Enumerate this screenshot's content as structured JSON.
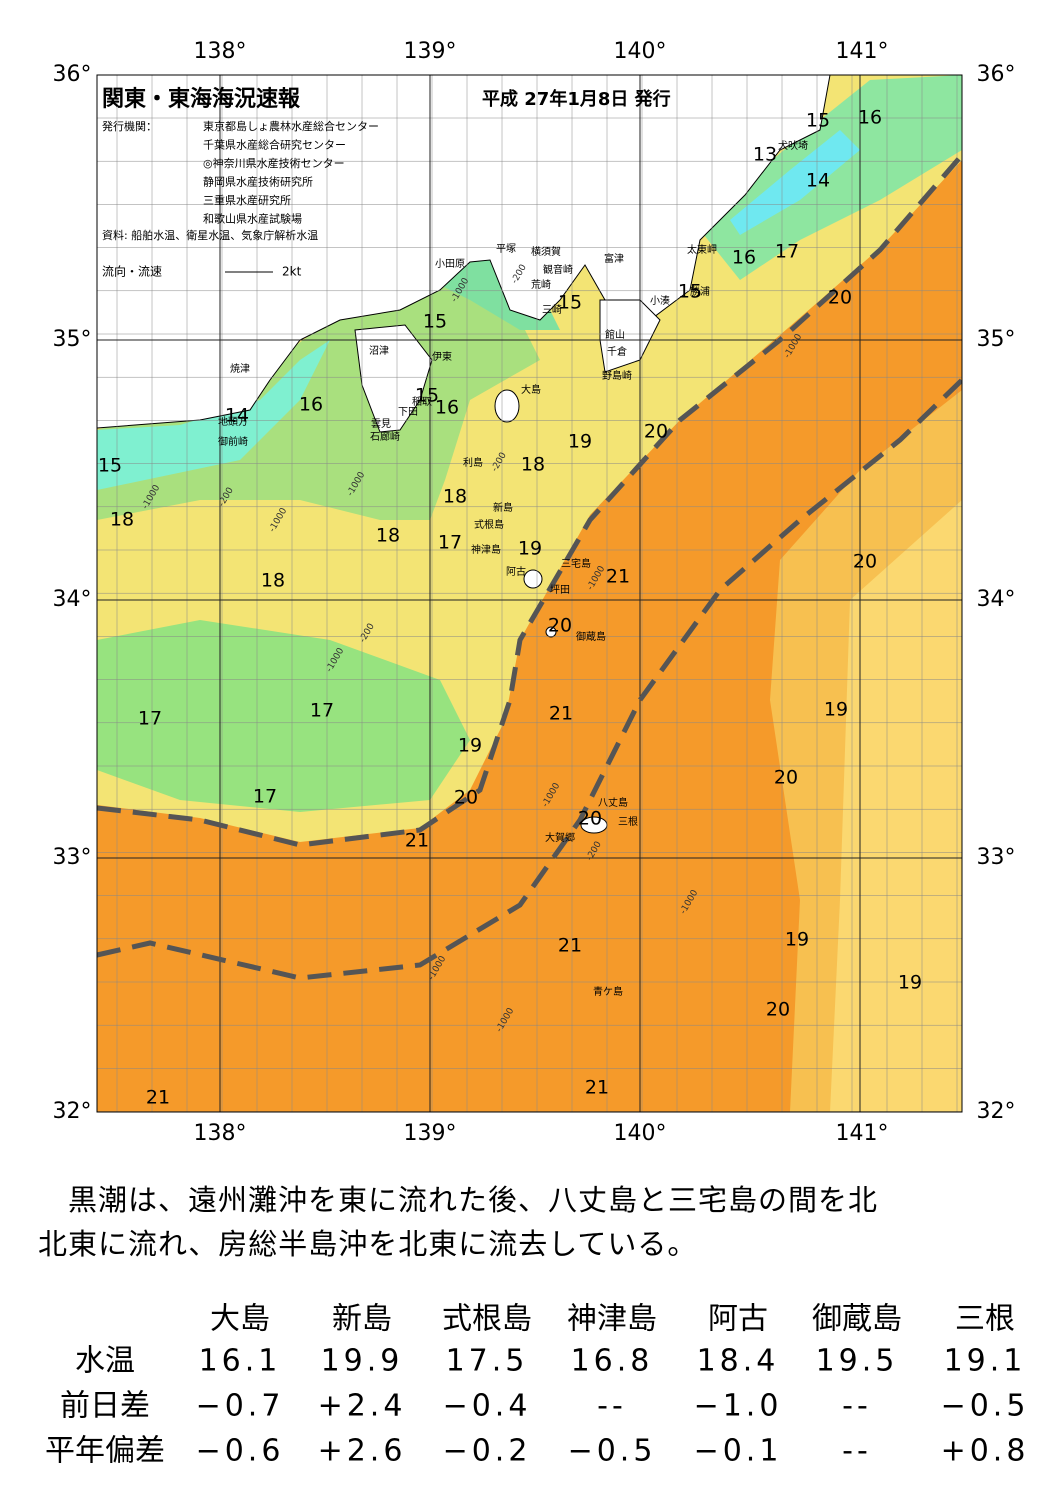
{
  "map": {
    "title": "関東・東海海況速報",
    "issue_date": "平成 27年1月8日 発行",
    "issuer_label": "発行機関：",
    "issuers": [
      "東京都島しょ農林水産総合センター",
      "千葉県水産総合研究センター",
      "◎神奈川県水産技術センター",
      "静岡県水産技術研究所",
      "三重県水産研究所",
      "和歌山県水産試験場"
    ],
    "source": "資料: 船舶水温、衛星水温、気象庁解析水温",
    "legend": "流向・流速",
    "legend_scale": "2kt",
    "lon_labels": [
      "138°",
      "139°",
      "140°",
      "141°"
    ],
    "lat_labels": [
      "36°",
      "35°",
      "34°",
      "33°",
      "32°"
    ],
    "temperature_labels": [
      "16",
      "15",
      "13",
      "14",
      "16",
      "17",
      "15",
      "20",
      "15",
      "15",
      "16",
      "14",
      "15",
      "16",
      "15",
      "18",
      "19",
      "20",
      "18",
      "18",
      "18",
      "17",
      "19",
      "18",
      "21",
      "20",
      "20",
      "17",
      "17",
      "21",
      "19",
      "19",
      "20",
      "20",
      "17",
      "20",
      "21",
      "19",
      "21",
      "19",
      "20",
      "21",
      "21"
    ],
    "place_names": [
      "犬吠埼",
      "太東岬",
      "富津",
      "平塚",
      "横須賀",
      "観音崎",
      "荒崎",
      "小田原",
      "勝浦",
      "小湊",
      "三崎",
      "館山",
      "千倉",
      "野島崎",
      "沼津",
      "伊東",
      "焼津",
      "大島",
      "稲取",
      "下田",
      "雲見",
      "石廊崎",
      "地頭方",
      "御前崎",
      "利島",
      "新島",
      "式根島",
      "神津島",
      "三宅島",
      "阿古",
      "坪田",
      "御蔵島",
      "八丈島",
      "三根",
      "大賀郷",
      "青ケ島"
    ],
    "depth_labels": [
      "-200",
      "-1000",
      "-1000",
      "-1000",
      "-1000",
      "-200",
      "-1000",
      "-200",
      "-1000",
      "-200",
      "-1000",
      "-1000",
      "-200",
      "-1000",
      "-1000",
      "-1000"
    ]
  },
  "summary": [
    "黒潮は、遠州灘沖を東に流れた後、八丈島と三宅島の間を北",
    "北東に流れ、房総半島沖を北東に流去している。"
  ],
  "table": {
    "columns": [
      "大島",
      "新島",
      "式根島",
      "神津島",
      "阿古",
      "御蔵島",
      "三根"
    ],
    "rows": [
      {
        "label": "水温",
        "values": [
          "16.1",
          "19.9",
          "17.5",
          "16.8",
          "18.4",
          "19.5",
          "19.1"
        ]
      },
      {
        "label": "前日差",
        "values": [
          "−0.7",
          "+2.4",
          "−0.4",
          "--",
          "−1.0",
          "--",
          "−0.5"
        ]
      },
      {
        "label": "平年偏差",
        "values": [
          "−0.6",
          "+2.6",
          "−0.2",
          "−0.5",
          "−0.1",
          "--",
          "+0.8"
        ]
      }
    ]
  }
}
